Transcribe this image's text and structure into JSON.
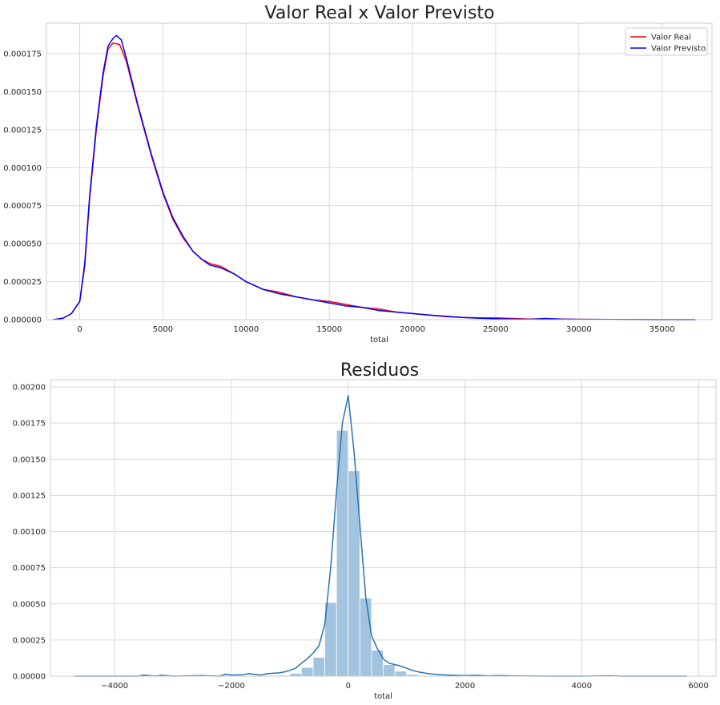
{
  "chart_data": [
    {
      "type": "line",
      "title": "Valor Real x Valor Previsto",
      "xlabel": "total",
      "ylabel": "",
      "xlim": [
        -2000,
        38000
      ],
      "ylim": [
        0,
        0.000195
      ],
      "grid": true,
      "legend_placement": "top-right",
      "xticks": [
        0,
        5000,
        10000,
        15000,
        20000,
        25000,
        30000,
        35000
      ],
      "xtick_labels": [
        "0",
        "5000",
        "10000",
        "15000",
        "20000",
        "25000",
        "30000",
        "35000"
      ],
      "yticks": [
        0,
        2.5e-05,
        5e-05,
        7.5e-05,
        0.0001,
        0.000125,
        0.00015,
        0.000175
      ],
      "ytick_labels": [
        "0.000000",
        "0.000025",
        "0.000050",
        "0.000075",
        "0.000100",
        "0.000125",
        "0.000150",
        "0.000175"
      ],
      "series": [
        {
          "name": "Valor Real",
          "color": "#ff0000",
          "x": [
            -1600,
            -1000,
            -500,
            0,
            300,
            600,
            1000,
            1400,
            1700,
            2000,
            2400,
            2800,
            3500,
            4300,
            5000,
            5600,
            6200,
            6800,
            7300,
            7800,
            8500,
            9300,
            10000,
            11000,
            12000,
            13000,
            14000,
            15000,
            16000,
            17000,
            18000,
            19000,
            20000,
            21000,
            22000,
            23000,
            24000,
            25000,
            26000,
            27000,
            28000,
            29000,
            30000,
            32000,
            35000,
            37000
          ],
          "y": [
            0,
            1e-06,
            4e-06,
            1.2e-05,
            3.5e-05,
            8e-05,
            0.000125,
            0.00016,
            0.000178,
            0.000182,
            0.000181,
            0.00017,
            0.00014,
            0.000108,
            8.3e-05,
            6.6e-05,
            5.4e-05,
            4.5e-05,
            4e-05,
            3.7e-05,
            3.5e-05,
            3e-05,
            2.5e-05,
            2e-05,
            1.8e-05,
            1.5e-05,
            1.3e-05,
            1.2e-05,
            1e-05,
            8e-06,
            7e-06,
            5e-06,
            4e-06,
            3e-06,
            2e-06,
            1.5e-06,
            1.2e-06,
            1.2e-06,
            8e-07,
            4e-07,
            6e-07,
            4e-07,
            2e-07,
            1e-07,
            0,
            0
          ]
        },
        {
          "name": "Valor Previsto",
          "color": "#0000ff",
          "x": [
            -1600,
            -1000,
            -500,
            0,
            300,
            600,
            1000,
            1400,
            1700,
            2000,
            2200,
            2500,
            2800,
            3500,
            4300,
            5000,
            5600,
            6200,
            6800,
            7300,
            7800,
            8500,
            9300,
            10000,
            11000,
            12000,
            13000,
            14000,
            15000,
            16000,
            17000,
            18000,
            19000,
            20000,
            21000,
            22000,
            23000,
            24000,
            25000,
            26000,
            27000,
            28000,
            29000,
            30000,
            32000,
            35000,
            37000
          ],
          "y": [
            0,
            1e-06,
            4e-06,
            1.2e-05,
            3.7e-05,
            8.2e-05,
            0.000127,
            0.000162,
            0.00018,
            0.000185,
            0.000187,
            0.000184,
            0.000172,
            0.000141,
            0.000109,
            8.4e-05,
            6.7e-05,
            5.5e-05,
            4.5e-05,
            4e-05,
            3.6e-05,
            3.4e-05,
            3e-05,
            2.5e-05,
            2e-05,
            1.7e-05,
            1.5e-05,
            1.3e-05,
            1.1e-05,
            9e-06,
            8e-06,
            6e-06,
            5e-06,
            4e-06,
            3e-06,
            2.2e-06,
            1.5e-06,
            9e-07,
            6e-07,
            4e-07,
            2e-07,
            8e-07,
            3e-07,
            2e-07,
            1e-07,
            0,
            0
          ]
        }
      ]
    },
    {
      "type": "bar",
      "title": "Residuos",
      "xlabel": "total",
      "ylabel": "",
      "xlim": [
        -5100,
        6300
      ],
      "ylim": [
        0,
        0.00205
      ],
      "grid": true,
      "xticks": [
        -4000,
        -2000,
        0,
        2000,
        4000,
        6000
      ],
      "xtick_labels": [
        "−4000",
        "−2000",
        "0",
        "2000",
        "4000",
        "6000"
      ],
      "yticks": [
        0,
        0.00025,
        0.0005,
        0.00075,
        0.001,
        0.00125,
        0.0015,
        0.00175,
        0.002
      ],
      "ytick_labels": [
        "0.00000",
        "0.00025",
        "0.00050",
        "0.00075",
        "0.00100",
        "0.00125",
        "0.00150",
        "0.00175",
        "0.00200"
      ],
      "histogram": {
        "color": "#a3c4df",
        "bin_width": 200,
        "bins_start": [
          -1200,
          -1000,
          -800,
          -600,
          -400,
          -200,
          0,
          200,
          400,
          600,
          800,
          1000,
          1200
        ],
        "values": [
          6e-06,
          2e-05,
          6e-05,
          0.00013,
          0.00051,
          0.0017,
          0.00142,
          0.00054,
          0.00018,
          8e-05,
          3.5e-05,
          1.2e-05,
          4e-06
        ]
      },
      "kde": {
        "color": "#2874b2",
        "x": [
          -4700,
          -4000,
          -3600,
          -3500,
          -3300,
          -3200,
          -3000,
          -2500,
          -2200,
          -2100,
          -2000,
          -1800,
          -1700,
          -1600,
          -1500,
          -1400,
          -1300,
          -1200,
          -1100,
          -1000,
          -900,
          -800,
          -700,
          -600,
          -500,
          -400,
          -300,
          -200,
          -100,
          0,
          100,
          200,
          300,
          400,
          500,
          600,
          700,
          800,
          900,
          1000,
          1100,
          1200,
          1300,
          1400,
          1600,
          1800,
          2000,
          2200,
          2400,
          2600,
          2800,
          3000,
          3500,
          4000,
          4500,
          4700,
          5000,
          5800
        ],
        "y": [
          0,
          0,
          0,
          8e-06,
          0,
          6e-06,
          0,
          4e-06,
          0,
          1.4e-05,
          8e-06,
          1e-05,
          1.8e-05,
          1.2e-05,
          8e-06,
          1.6e-05,
          2e-05,
          2.2e-05,
          2.8e-05,
          4e-05,
          5.5e-05,
          9e-05,
          0.00012,
          0.00016,
          0.00021,
          0.00036,
          0.00075,
          0.00128,
          0.00175,
          0.00194,
          0.00155,
          0.00105,
          0.00055,
          0.00028,
          0.00019,
          0.00012,
          9e-05,
          8e-05,
          7e-05,
          5.5e-05,
          4e-05,
          3e-05,
          2.2e-05,
          1.6e-05,
          1e-05,
          6e-06,
          4e-06,
          6e-06,
          2e-06,
          4e-06,
          2e-06,
          1e-06,
          0,
          0,
          3e-06,
          0,
          0,
          0
        ]
      }
    }
  ]
}
